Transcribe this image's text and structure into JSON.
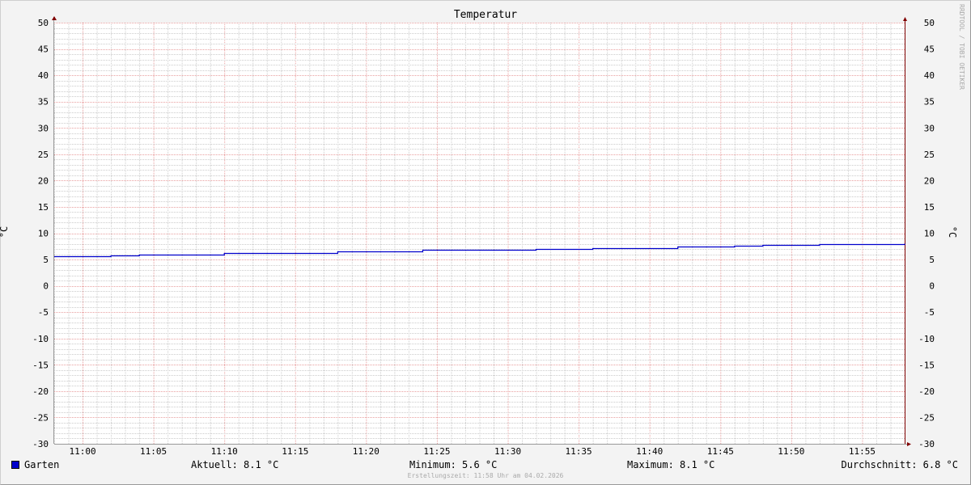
{
  "chart_data": {
    "type": "line",
    "title": "Temperatur",
    "ylabel": "°C",
    "ylabel_right": "°C",
    "ylim": [
      -30,
      50
    ],
    "yticks": [
      50,
      45,
      40,
      35,
      30,
      25,
      20,
      15,
      10,
      5,
      0,
      -5,
      -10,
      -15,
      -20,
      -25,
      -30
    ],
    "xlim": [
      "10:58",
      "11:58"
    ],
    "xticks": [
      "11:00",
      "11:05",
      "11:10",
      "11:15",
      "11:20",
      "11:25",
      "11:30",
      "11:35",
      "11:40",
      "11:45",
      "11:50",
      "11:55"
    ],
    "grid": true,
    "series": [
      {
        "name": "Garten",
        "color": "#0000cc",
        "step": true,
        "x": [
          "10:58",
          "11:02",
          "11:04",
          "11:08",
          "11:10",
          "11:16",
          "11:18",
          "11:24",
          "11:32",
          "11:36",
          "11:42",
          "11:46",
          "11:48",
          "11:52",
          "11:58"
        ],
        "values": [
          5.6,
          5.8,
          5.9,
          6.0,
          6.2,
          6.3,
          6.5,
          6.8,
          7.0,
          7.2,
          7.4,
          7.6,
          7.8,
          7.9,
          8.1
        ]
      }
    ]
  },
  "legend": {
    "series_name": "Garten",
    "current": "Aktuell: 8.1 °C",
    "minimum": "Minimum: 5.6 °C",
    "maximum": "Maximum: 8.1 °C",
    "average": "Durchschnitt: 6.8 °C"
  },
  "footer": "Erstellungszeit: 11:58 Uhr am 04.02.2026",
  "watermark": "RRDTOOL / TOBI OETIKER",
  "colors": {
    "grid_minor": "#cccccc",
    "grid_major": "#e9a0a0",
    "axis": "#800000",
    "line": "#0000cc"
  }
}
